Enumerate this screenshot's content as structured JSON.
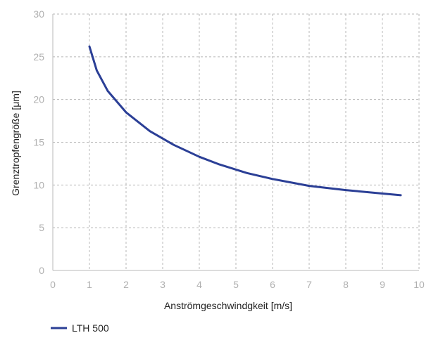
{
  "chart_data": {
    "type": "line",
    "title": "",
    "xlabel": "Anströmgeschwindgkeit [m/s]",
    "ylabel": "Grenztropfengröße [μm]",
    "xlim": [
      0,
      10
    ],
    "ylim": [
      0,
      30
    ],
    "xticks": [
      0,
      1,
      2,
      3,
      4,
      5,
      6,
      7,
      8,
      9,
      10
    ],
    "yticks": [
      0,
      5,
      10,
      15,
      20,
      25,
      30
    ],
    "grid": true,
    "legend_position": "bottom-left",
    "series": [
      {
        "name": "LTH 500",
        "color": "#2b3f96",
        "x": [
          1.0,
          1.2,
          1.5,
          2.0,
          2.65,
          3.3,
          4.0,
          4.55,
          5.3,
          6.0,
          7.0,
          8.0,
          9.0,
          9.5
        ],
        "y": [
          26.2,
          23.4,
          21.0,
          18.5,
          16.3,
          14.7,
          13.3,
          12.4,
          11.4,
          10.7,
          9.9,
          9.4,
          9.0,
          8.8
        ]
      }
    ]
  }
}
